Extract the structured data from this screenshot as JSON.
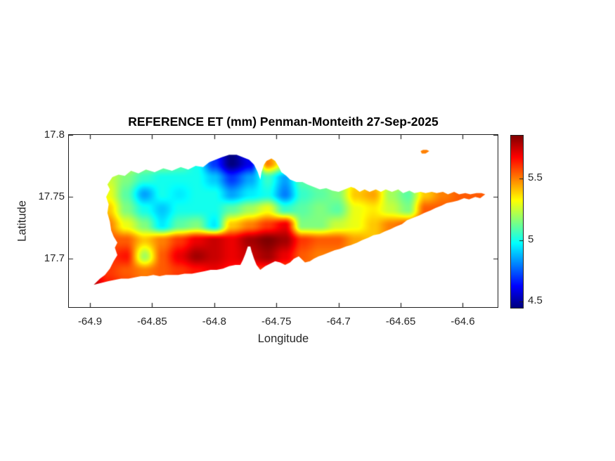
{
  "figure": {
    "title": "REFERENCE ET (mm) Penman-Monteith 27-Sep-2025",
    "xlabel": "Longitude",
    "ylabel": "Latitude",
    "background": "#FFFFFF",
    "axis_color": "#1F1F1F",
    "label_color": "#262626"
  },
  "chart_data": {
    "type": "heatmap",
    "title": "REFERENCE ET (mm) Penman-Monteith 27-Sep-2025",
    "xlabel": "Longitude",
    "ylabel": "Latitude",
    "xlim": [
      -64.917,
      -64.572
    ],
    "ylim": [
      17.661,
      17.8
    ],
    "xticks": {
      "values": [
        -64.9,
        -64.85,
        -64.8,
        -64.75,
        -64.7,
        -64.65,
        -64.6
      ],
      "labels": [
        "-64.9",
        "-64.85",
        "-64.8",
        "-64.75",
        "-64.7",
        "-64.65",
        "-64.6"
      ]
    },
    "yticks": {
      "values": [
        17.7,
        17.75,
        17.8
      ],
      "labels": [
        "17.7",
        "17.75",
        "17.8"
      ]
    },
    "colormap": "jet",
    "caxis": [
      4.45,
      5.85
    ],
    "colorbar": {
      "tick_values": [
        4.5,
        5,
        5.5
      ],
      "tick_labels": [
        "4.5",
        "5",
        "5.5"
      ],
      "position": "right"
    },
    "grid": {
      "lons": [
        -64.899,
        -64.885,
        -64.871,
        -64.856,
        -64.842,
        -64.828,
        -64.814,
        -64.8,
        -64.786,
        -64.771,
        -64.757,
        -64.743,
        -64.729,
        -64.715,
        -64.701,
        -64.686,
        -64.672,
        -64.658,
        -64.644,
        -64.63,
        -64.616,
        -64.601,
        -64.587
      ],
      "lats": [
        17.79,
        17.777,
        17.765,
        17.752,
        17.74,
        17.727,
        17.715,
        17.702,
        17.69,
        17.677
      ],
      "values": [
        [
          5.3,
          5.3,
          5.25,
          5.2,
          5.15,
          5.1,
          4.9,
          4.6,
          4.45,
          4.7,
          5.4,
          5.3,
          5.25,
          5.25,
          5.3,
          5.35,
          5.35,
          5.4,
          5.45,
          5.5,
          5.5,
          5.55,
          5.55
        ],
        [
          5.3,
          5.28,
          5.25,
          5.2,
          5.15,
          5.1,
          5.0,
          4.7,
          4.45,
          4.6,
          5.5,
          5.25,
          5.2,
          5.2,
          5.25,
          5.3,
          5.35,
          5.4,
          5.45,
          5.5,
          5.5,
          5.55,
          5.55
        ],
        [
          5.35,
          5.25,
          5.15,
          5.05,
          5.0,
          5.0,
          5.0,
          4.9,
          4.7,
          4.85,
          5.05,
          4.85,
          5.1,
          5.15,
          5.2,
          5.35,
          5.3,
          5.35,
          5.4,
          5.45,
          5.5,
          5.55,
          5.55
        ],
        [
          5.45,
          5.3,
          5.1,
          4.85,
          5.0,
          4.95,
          5.0,
          5.0,
          4.85,
          4.95,
          5.0,
          4.8,
          5.05,
          5.1,
          5.15,
          5.4,
          5.45,
          5.2,
          5.1,
          5.4,
          5.5,
          5.55,
          5.55
        ],
        [
          5.55,
          5.4,
          5.15,
          5.0,
          4.9,
          5.0,
          5.0,
          5.0,
          5.1,
          5.2,
          5.3,
          5.05,
          5.1,
          5.15,
          5.1,
          5.3,
          5.35,
          5.25,
          5.15,
          5.55,
          5.55,
          5.55,
          5.6
        ],
        [
          5.6,
          5.5,
          5.3,
          5.15,
          4.95,
          5.1,
          5.15,
          4.95,
          5.4,
          5.5,
          5.6,
          5.7,
          5.15,
          5.15,
          5.25,
          5.3,
          5.4,
          5.5,
          5.55,
          5.6,
          5.6,
          5.6,
          5.6
        ],
        [
          5.65,
          5.55,
          5.55,
          5.4,
          5.5,
          5.6,
          5.7,
          5.75,
          5.7,
          5.8,
          5.85,
          5.8,
          5.6,
          5.55,
          5.55,
          5.45,
          5.4,
          5.5,
          5.55,
          5.6,
          5.6,
          5.6,
          5.6
        ],
        [
          5.7,
          5.6,
          5.65,
          5.2,
          5.55,
          5.7,
          5.8,
          5.75,
          5.7,
          5.75,
          5.8,
          5.7,
          5.55,
          5.5,
          5.5,
          5.45,
          5.45,
          5.5,
          5.55,
          5.6,
          5.6,
          5.6,
          5.6
        ],
        [
          5.7,
          5.6,
          5.55,
          5.5,
          5.55,
          5.6,
          5.65,
          5.7,
          5.65,
          5.6,
          5.6,
          5.55,
          5.5,
          5.5,
          5.5,
          5.45,
          5.45,
          5.5,
          5.55,
          5.55,
          5.6,
          5.6,
          5.6
        ],
        [
          5.8,
          5.65,
          5.6,
          5.55,
          5.55,
          5.6,
          5.65,
          5.65,
          5.65,
          5.6,
          5.6,
          5.55,
          5.5,
          5.5,
          5.5,
          5.45,
          5.45,
          5.5,
          5.55,
          5.55,
          5.6,
          5.6,
          5.6
        ]
      ]
    },
    "island_outline": [
      [
        -64.897,
        17.679
      ],
      [
        -64.892,
        17.684
      ],
      [
        -64.888,
        17.687
      ],
      [
        -64.884,
        17.692
      ],
      [
        -64.881,
        17.698
      ],
      [
        -64.878,
        17.703
      ],
      [
        -64.88,
        17.709
      ],
      [
        -64.878,
        17.713
      ],
      [
        -64.881,
        17.718
      ],
      [
        -64.883,
        17.723
      ],
      [
        -64.884,
        17.73
      ],
      [
        -64.886,
        17.737
      ],
      [
        -64.885,
        17.744
      ],
      [
        -64.887,
        17.75
      ],
      [
        -64.884,
        17.756
      ],
      [
        -64.886,
        17.76
      ],
      [
        -64.882,
        17.766
      ],
      [
        -64.877,
        17.768
      ],
      [
        -64.872,
        17.767
      ],
      [
        -64.867,
        17.771
      ],
      [
        -64.861,
        17.769
      ],
      [
        -64.855,
        17.772
      ],
      [
        -64.848,
        17.77
      ],
      [
        -64.841,
        17.773
      ],
      [
        -64.834,
        17.771
      ],
      [
        -64.827,
        17.774
      ],
      [
        -64.821,
        17.772
      ],
      [
        -64.815,
        17.775
      ],
      [
        -64.809,
        17.774
      ],
      [
        -64.804,
        17.778
      ],
      [
        -64.799,
        17.78
      ],
      [
        -64.794,
        17.782
      ],
      [
        -64.788,
        17.784
      ],
      [
        -64.782,
        17.784
      ],
      [
        -64.777,
        17.782
      ],
      [
        -64.772,
        17.78
      ],
      [
        -64.768,
        17.776
      ],
      [
        -64.765,
        17.77
      ],
      [
        -64.763,
        17.764
      ],
      [
        -64.762,
        17.77
      ],
      [
        -64.76,
        17.776
      ],
      [
        -64.758,
        17.779
      ],
      [
        -64.754,
        17.781
      ],
      [
        -64.751,
        17.779
      ],
      [
        -64.748,
        17.774
      ],
      [
        -64.746,
        17.77
      ],
      [
        -64.742,
        17.767
      ],
      [
        -64.739,
        17.764
      ],
      [
        -64.734,
        17.762
      ],
      [
        -64.729,
        17.762
      ],
      [
        -64.725,
        17.76
      ],
      [
        -64.72,
        17.758
      ],
      [
        -64.715,
        17.756
      ],
      [
        -64.71,
        17.757
      ],
      [
        -64.705,
        17.755
      ],
      [
        -64.7,
        17.754
      ],
      [
        -64.695,
        17.756
      ],
      [
        -64.69,
        17.758
      ],
      [
        -64.687,
        17.757
      ],
      [
        -64.683,
        17.754
      ],
      [
        -64.679,
        17.756
      ],
      [
        -64.675,
        17.754
      ],
      [
        -64.67,
        17.756
      ],
      [
        -64.666,
        17.754
      ],
      [
        -64.662,
        17.756
      ],
      [
        -64.657,
        17.754
      ],
      [
        -64.652,
        17.756
      ],
      [
        -64.648,
        17.753
      ],
      [
        -64.643,
        17.755
      ],
      [
        -64.639,
        17.753
      ],
      [
        -64.634,
        17.754
      ],
      [
        -64.63,
        17.753
      ],
      [
        -64.625,
        17.754
      ],
      [
        -64.621,
        17.753
      ],
      [
        -64.616,
        17.754
      ],
      [
        -64.612,
        17.752
      ],
      [
        -64.607,
        17.754
      ],
      [
        -64.603,
        17.752
      ],
      [
        -64.598,
        17.753
      ],
      [
        -64.594,
        17.752
      ],
      [
        -64.589,
        17.753
      ],
      [
        -64.585,
        17.753
      ],
      [
        -64.582,
        17.752
      ],
      [
        -64.586,
        17.749
      ],
      [
        -64.59,
        17.75
      ],
      [
        -64.595,
        17.748
      ],
      [
        -64.599,
        17.749
      ],
      [
        -64.604,
        17.747
      ],
      [
        -64.608,
        17.746
      ],
      [
        -64.613,
        17.745
      ],
      [
        -64.617,
        17.743
      ],
      [
        -64.622,
        17.741
      ],
      [
        -64.626,
        17.739
      ],
      [
        -64.631,
        17.737
      ],
      [
        -64.635,
        17.735
      ],
      [
        -64.64,
        17.733
      ],
      [
        -64.645,
        17.731
      ],
      [
        -64.649,
        17.728
      ],
      [
        -64.654,
        17.726
      ],
      [
        -64.658,
        17.724
      ],
      [
        -64.663,
        17.722
      ],
      [
        -64.667,
        17.72
      ],
      [
        -64.672,
        17.719
      ],
      [
        -64.676,
        17.717
      ],
      [
        -64.681,
        17.715
      ],
      [
        -64.685,
        17.713
      ],
      [
        -64.69,
        17.711
      ],
      [
        -64.694,
        17.71
      ],
      [
        -64.699,
        17.708
      ],
      [
        -64.703,
        17.707
      ],
      [
        -64.708,
        17.705
      ],
      [
        -64.713,
        17.703
      ],
      [
        -64.716,
        17.702
      ],
      [
        -64.72,
        17.7
      ],
      [
        -64.723,
        17.698
      ],
      [
        -64.727,
        17.697
      ],
      [
        -64.73,
        17.7
      ],
      [
        -64.732,
        17.702
      ],
      [
        -64.736,
        17.7
      ],
      [
        -64.739,
        17.697
      ],
      [
        -64.743,
        17.695
      ],
      [
        -64.747,
        17.697
      ],
      [
        -64.751,
        17.698
      ],
      [
        -64.755,
        17.696
      ],
      [
        -64.759,
        17.694
      ],
      [
        -64.763,
        17.691
      ],
      [
        -64.766,
        17.695
      ],
      [
        -64.768,
        17.7
      ],
      [
        -64.77,
        17.706
      ],
      [
        -64.771,
        17.71
      ],
      [
        -64.773,
        17.71
      ],
      [
        -64.775,
        17.704
      ],
      [
        -64.777,
        17.699
      ],
      [
        -64.779,
        17.695
      ],
      [
        -64.783,
        17.695
      ],
      [
        -64.788,
        17.694
      ],
      [
        -64.793,
        17.692
      ],
      [
        -64.798,
        17.691
      ],
      [
        -64.803,
        17.691
      ],
      [
        -64.808,
        17.69
      ],
      [
        -64.813,
        17.689
      ],
      [
        -64.818,
        17.688
      ],
      [
        -64.824,
        17.688
      ],
      [
        -64.829,
        17.687
      ],
      [
        -64.834,
        17.687
      ],
      [
        -64.839,
        17.687
      ],
      [
        -64.844,
        17.686
      ],
      [
        -64.849,
        17.687
      ],
      [
        -64.854,
        17.686
      ],
      [
        -64.859,
        17.686
      ],
      [
        -64.864,
        17.685
      ],
      [
        -64.869,
        17.684
      ],
      [
        -64.875,
        17.684
      ],
      [
        -64.88,
        17.683
      ],
      [
        -64.885,
        17.682
      ],
      [
        -64.889,
        17.681
      ],
      [
        -64.893,
        17.68
      ]
    ],
    "buck_island_outline": [
      [
        -64.634,
        17.787
      ],
      [
        -64.632,
        17.788
      ],
      [
        -64.629,
        17.788
      ],
      [
        -64.627,
        17.787
      ],
      [
        -64.63,
        17.785
      ],
      [
        -64.633,
        17.785
      ]
    ]
  }
}
